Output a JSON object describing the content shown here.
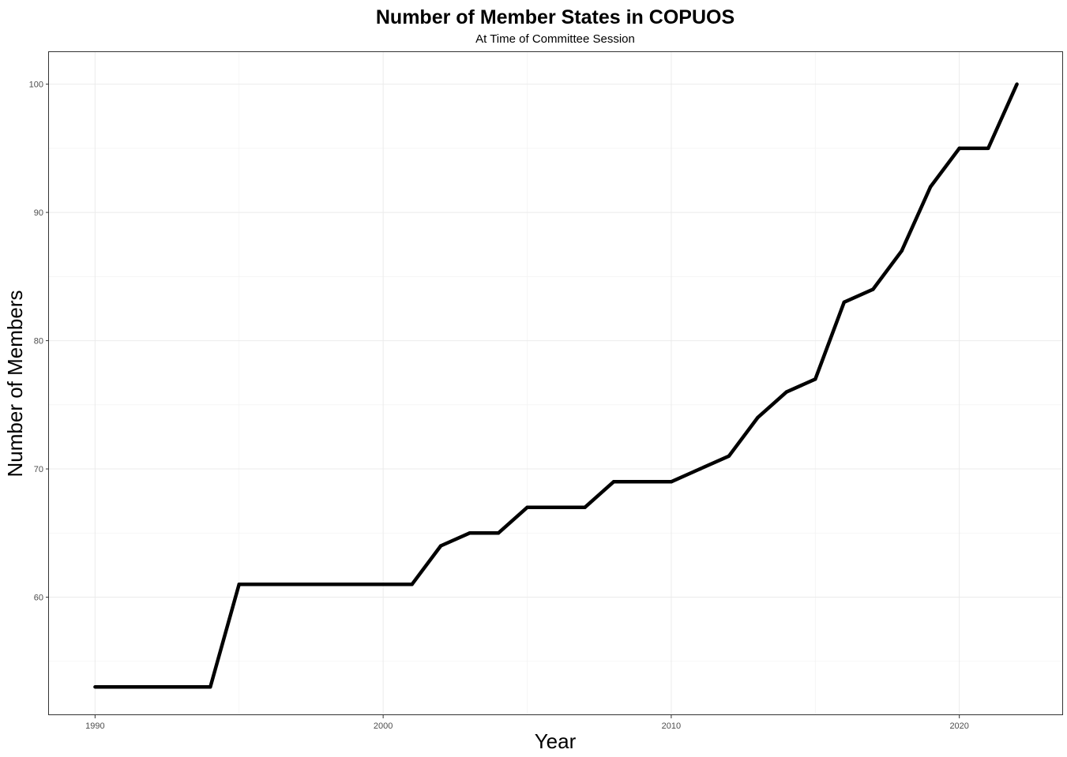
{
  "chart_data": {
    "type": "line",
    "title": "Number of Member States in COPUOS",
    "subtitle": "At Time of Committee Session",
    "xlabel": "Year",
    "ylabel": "Number of Members",
    "xlim": [
      1988.4,
      2023.6
    ],
    "ylim": [
      50.8,
      102.5
    ],
    "x_ticks": [
      1990,
      2000,
      2010,
      2020
    ],
    "x_tick_labels": [
      "1990",
      "2000",
      "2010",
      "2020"
    ],
    "y_ticks": [
      60,
      70,
      80,
      90,
      100
    ],
    "y_tick_labels": [
      "60",
      "70",
      "80",
      "90",
      "100"
    ],
    "x_minor_ticks": [
      1995,
      2005,
      2015
    ],
    "y_minor_ticks": [
      55,
      65,
      75,
      85,
      95
    ],
    "grid": true,
    "legend": "none",
    "series": [
      {
        "color": "#000000",
        "x": [
          1990,
          1991,
          1992,
          1993,
          1994,
          1995,
          1996,
          1997,
          1998,
          1999,
          2000,
          2001,
          2002,
          2003,
          2004,
          2005,
          2006,
          2007,
          2008,
          2009,
          2010,
          2011,
          2012,
          2013,
          2014,
          2015,
          2016,
          2017,
          2018,
          2019,
          2020,
          2021,
          2022
        ],
        "y": [
          53,
          53,
          53,
          53,
          53,
          61,
          61,
          61,
          61,
          61,
          61,
          61,
          64,
          65,
          65,
          67,
          67,
          67,
          69,
          69,
          69,
          70,
          71,
          74,
          76,
          77,
          83,
          84,
          87,
          92,
          95,
          95,
          100
        ]
      }
    ]
  }
}
